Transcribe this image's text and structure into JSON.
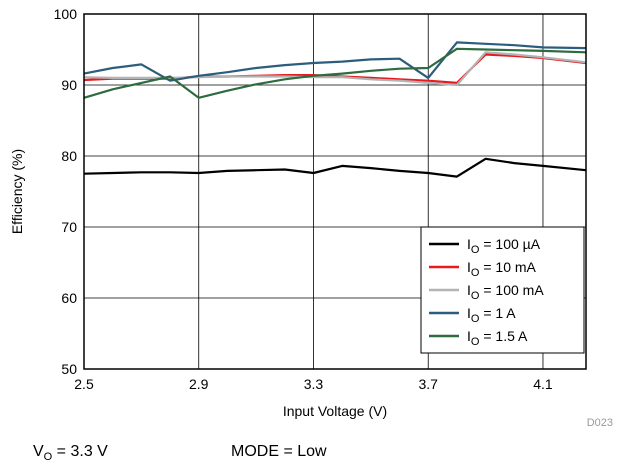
{
  "chart_data": {
    "type": "line",
    "xlabel": "Input Voltage (V)",
    "ylabel": "Efficiency (%)",
    "xlim": [
      2.5,
      4.25
    ],
    "ylim": [
      50,
      100
    ],
    "xticks": [
      2.5,
      2.9,
      3.3,
      3.7,
      4.1
    ],
    "xtick_labels": [
      "2.5",
      "2.9",
      "3.3",
      "3.7",
      "4.1"
    ],
    "yticks": [
      50,
      60,
      70,
      80,
      90,
      100
    ],
    "ytick_labels": [
      "50",
      "60",
      "70",
      "80",
      "90",
      "100"
    ],
    "grid": true,
    "legend_position": "bottom-right",
    "series": [
      {
        "name": "IO = 100 µA",
        "label_main": "I",
        "label_sub": "O",
        "label_rest": " = 100 µA",
        "color": "#000000",
        "x": [
          2.5,
          2.6,
          2.7,
          2.8,
          2.9,
          3.0,
          3.1,
          3.2,
          3.3,
          3.4,
          3.5,
          3.6,
          3.7,
          3.8,
          3.9,
          4.0,
          4.1,
          4.25
        ],
        "y": [
          77.5,
          77.6,
          77.7,
          77.7,
          77.6,
          77.9,
          78.0,
          78.1,
          77.6,
          78.6,
          78.3,
          77.9,
          77.6,
          77.1,
          79.6,
          79.0,
          78.6,
          78.0
        ]
      },
      {
        "name": "IO = 10 mA",
        "label_main": "I",
        "label_sub": "O",
        "label_rest": " = 10 mA",
        "color": "#e8191f",
        "x": [
          2.5,
          2.6,
          2.7,
          2.8,
          2.9,
          3.0,
          3.1,
          3.2,
          3.3,
          3.4,
          3.5,
          3.6,
          3.7,
          3.8,
          3.9,
          4.0,
          4.1,
          4.25
        ],
        "y": [
          90.7,
          90.9,
          90.9,
          90.9,
          91.2,
          91.2,
          91.3,
          91.4,
          91.4,
          91.2,
          91.0,
          90.8,
          90.6,
          90.3,
          94.3,
          94.1,
          93.8,
          93.1
        ]
      },
      {
        "name": "IO = 100 mA",
        "label_main": "I",
        "label_sub": "O",
        "label_rest": " = 100 mA",
        "color": "#b3b3b3",
        "x": [
          2.5,
          2.6,
          2.7,
          2.8,
          2.9,
          3.0,
          3.1,
          3.2,
          3.3,
          3.4,
          3.5,
          3.6,
          3.7,
          3.8,
          3.9,
          4.0,
          4.1,
          4.25
        ],
        "y": [
          91.1,
          91.0,
          91.0,
          91.0,
          91.1,
          91.2,
          91.2,
          91.2,
          91.1,
          91.1,
          90.8,
          90.6,
          90.3,
          90.0,
          94.6,
          94.3,
          93.9,
          93.2
        ]
      },
      {
        "name": "IO = 1 A",
        "label_main": "I",
        "label_sub": "O",
        "label_rest": " = 1 A",
        "color": "#2c5d7c",
        "x": [
          2.5,
          2.6,
          2.7,
          2.8,
          2.9,
          3.0,
          3.1,
          3.2,
          3.3,
          3.4,
          3.5,
          3.6,
          3.7,
          3.8,
          3.9,
          4.0,
          4.1,
          4.25
        ],
        "y": [
          91.6,
          92.4,
          92.9,
          90.6,
          91.3,
          91.8,
          92.4,
          92.8,
          93.1,
          93.3,
          93.6,
          93.7,
          91.0,
          96.0,
          95.8,
          95.6,
          95.3,
          95.2
        ]
      },
      {
        "name": "IO = 1.5 A",
        "label_main": "I",
        "label_sub": "O",
        "label_rest": " = 1.5 A",
        "color": "#2e6b3f",
        "x": [
          2.5,
          2.6,
          2.7,
          2.8,
          2.9,
          3.0,
          3.1,
          3.2,
          3.3,
          3.4,
          3.5,
          3.6,
          3.7,
          3.8,
          3.9,
          4.0,
          4.1,
          4.25
        ],
        "y": [
          88.2,
          89.4,
          90.3,
          91.2,
          88.2,
          89.2,
          90.1,
          90.8,
          91.3,
          91.6,
          92.0,
          92.3,
          92.4,
          95.1,
          95.0,
          94.9,
          94.8,
          94.6
        ]
      }
    ]
  },
  "figure_id": "D023",
  "conditions": {
    "vo_main": "V",
    "vo_sub": "O",
    "vo_rest": " = 3.3 V",
    "mode": "MODE = Low"
  }
}
